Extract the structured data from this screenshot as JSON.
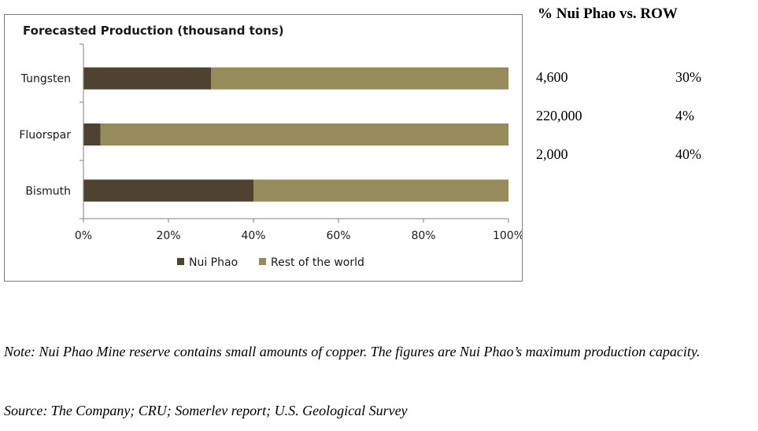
{
  "chart_data": {
    "type": "bar",
    "orientation": "horizontal",
    "stacked": "percent",
    "title": "Forecasted Production (thousand tons)",
    "categories": [
      "Tungsten",
      "Fluorspar",
      "Bismuth"
    ],
    "series": [
      {
        "name": "Nui Phao",
        "values": [
          30,
          4,
          40
        ],
        "color": "#4d4330"
      },
      {
        "name": "Rest of the world",
        "values": [
          70,
          96,
          60
        ],
        "color": "#958b5b"
      }
    ],
    "xlim": [
      0,
      100
    ],
    "xticks": [
      "0%",
      "20%",
      "40%",
      "60%",
      "80%",
      "100%"
    ],
    "grid": false,
    "legend_position": "bottom"
  },
  "side_table": {
    "header": "% Nui Phao vs. ROW",
    "rows": [
      {
        "production": "4,600",
        "pct": "30%"
      },
      {
        "production": "220,000",
        "pct": "4%"
      },
      {
        "production": "2,000",
        "pct": "40%"
      }
    ]
  },
  "note": "Note: Nui Phao Mine reserve contains small amounts of copper. The figures are Nui Phao’s maximum production capacity.",
  "source": "Source: The Company; CRU; Somerlev report; U.S. Geological Survey"
}
